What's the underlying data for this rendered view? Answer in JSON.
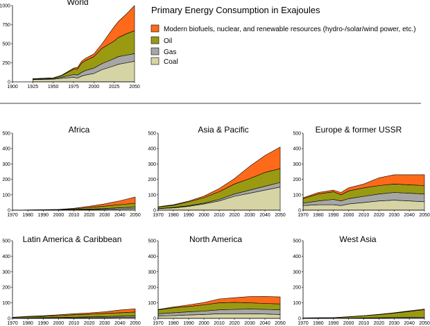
{
  "title": "Primary Energy Consumption in Exajoules",
  "colors": {
    "Coal": "#d6d3a5",
    "Gas": "#a6a6a6",
    "Oil": "#9a9a12",
    "Renewables": "#ff6a1a",
    "outline": "#000000"
  },
  "legend": [
    {
      "key": "Renewables",
      "label": "Modern biofuels, nuclear, and renewable resources (hydro-/solar/wind power, etc.)"
    },
    {
      "key": "Oil",
      "label": "Oil"
    },
    {
      "key": "Gas",
      "label": "Gas"
    },
    {
      "key": "Coal",
      "label": "Coal"
    }
  ],
  "chart_data": [
    {
      "type": "area",
      "title": "World",
      "stacked": true,
      "x": [
        1925,
        1950,
        1960,
        1975,
        1980,
        1985,
        1990,
        2000,
        2010,
        2025,
        2030,
        2040,
        2050
      ],
      "xticks": [
        1900,
        1925,
        1950,
        1975,
        2000,
        2025,
        2050
      ],
      "xtick_labels": [
        "1900",
        "1925",
        "1950",
        "1975",
        "2000",
        "2025",
        "2050"
      ],
      "xlim": [
        1900,
        2050
      ],
      "ylim": [
        0,
        1000
      ],
      "yticks": [
        0,
        250,
        500,
        750,
        1000
      ],
      "ytick_labels": [
        "0",
        "250",
        "500",
        "750",
        "1000"
      ],
      "series": [
        {
          "name": "Coal",
          "values": [
            30,
            35,
            45,
            60,
            50,
            75,
            90,
            110,
            160,
            210,
            230,
            250,
            270
          ]
        },
        {
          "name": "Gas",
          "values": [
            5,
            8,
            15,
            35,
            40,
            50,
            60,
            70,
            80,
            95,
            100,
            100,
            100
          ]
        },
        {
          "name": "Oil",
          "values": [
            5,
            10,
            20,
            70,
            80,
            120,
            130,
            150,
            200,
            230,
            250,
            280,
            300
          ]
        },
        {
          "name": "Renewables",
          "values": [
            0,
            0,
            5,
            15,
            20,
            25,
            30,
            35,
            60,
            190,
            210,
            260,
            330
          ]
        }
      ]
    },
    {
      "type": "area",
      "title": "Africa",
      "stacked": true,
      "x": [
        1970,
        2000,
        2010,
        2020,
        2030,
        2040,
        2050
      ],
      "xticks": [
        1970,
        1980,
        1990,
        2000,
        2010,
        2020,
        2030,
        2040,
        2050
      ],
      "xtick_labels": [
        "1970",
        "1980",
        "1990",
        "2000",
        "2010",
        "2020",
        "2030",
        "2040",
        "2050"
      ],
      "xlim": [
        1970,
        2050
      ],
      "ylim": [
        0,
        500
      ],
      "yticks": [
        0,
        100,
        200,
        300,
        400,
        500
      ],
      "ytick_labels": [
        "0",
        "100",
        "200",
        "300",
        "400",
        "500"
      ],
      "series": [
        {
          "name": "Coal",
          "values": [
            0,
            1,
            2,
            3,
            5,
            8,
            10
          ]
        },
        {
          "name": "Gas",
          "values": [
            0,
            1,
            2,
            4,
            6,
            8,
            10
          ]
        },
        {
          "name": "Oil",
          "values": [
            0,
            2,
            5,
            10,
            15,
            20,
            25
          ]
        },
        {
          "name": "Renewables",
          "values": [
            0,
            1,
            3,
            8,
            15,
            25,
            40
          ]
        }
      ]
    },
    {
      "type": "area",
      "title": "Asia & Pacific",
      "stacked": true,
      "x": [
        1970,
        1980,
        1990,
        2000,
        2010,
        2020,
        2030,
        2040,
        2050
      ],
      "xticks": [
        1970,
        1980,
        1990,
        2000,
        2010,
        2020,
        2030,
        2040,
        2050
      ],
      "xtick_labels": [
        "1970",
        "1980",
        "1990",
        "2000",
        "2010",
        "2020",
        "2030",
        "2040",
        "2050"
      ],
      "xlim": [
        1970,
        2050
      ],
      "ylim": [
        0,
        500
      ],
      "yticks": [
        0,
        100,
        200,
        300,
        400,
        500
      ],
      "ytick_labels": [
        "0",
        "100",
        "200",
        "300",
        "400",
        "500"
      ],
      "series": [
        {
          "name": "Coal",
          "values": [
            10,
            15,
            25,
            40,
            60,
            90,
            110,
            130,
            150
          ]
        },
        {
          "name": "Gas",
          "values": [
            1,
            2,
            4,
            6,
            10,
            15,
            20,
            25,
            30
          ]
        },
        {
          "name": "Oil",
          "values": [
            10,
            15,
            25,
            35,
            50,
            65,
            75,
            90,
            90
          ]
        },
        {
          "name": "Renewables",
          "values": [
            1,
            3,
            5,
            10,
            20,
            35,
            80,
            110,
            140
          ]
        }
      ]
    },
    {
      "type": "area",
      "title": "Europe & former USSR",
      "stacked": true,
      "x": [
        1970,
        1980,
        1990,
        1995,
        2000,
        2010,
        2020,
        2030,
        2040,
        2050
      ],
      "xticks": [
        1970,
        1980,
        1990,
        2000,
        2010,
        2020,
        2030,
        2040,
        2050
      ],
      "xtick_labels": [
        "1970",
        "1980",
        "1990",
        "2000",
        "2010",
        "2020",
        "2030",
        "2040",
        "2050"
      ],
      "xlim": [
        1970,
        2050
      ],
      "ylim": [
        0,
        500
      ],
      "yticks": [
        0,
        100,
        200,
        300,
        400,
        500
      ],
      "ytick_labels": [
        "0",
        "100",
        "200",
        "300",
        "400",
        "500"
      ],
      "series": [
        {
          "name": "Coal",
          "values": [
            30,
            35,
            35,
            30,
            40,
            50,
            60,
            65,
            60,
            55
          ]
        },
        {
          "name": "Gas",
          "values": [
            15,
            25,
            35,
            30,
            35,
            40,
            45,
            50,
            50,
            50
          ]
        },
        {
          "name": "Oil",
          "values": [
            30,
            45,
            50,
            40,
            50,
            55,
            55,
            55,
            55,
            55
          ]
        },
        {
          "name": "Renewables",
          "values": [
            5,
            10,
            10,
            15,
            20,
            25,
            50,
            60,
            65,
            70
          ]
        }
      ]
    },
    {
      "type": "area",
      "title": "Latin America & Caribbean",
      "stacked": true,
      "x": [
        1970,
        1980,
        1990,
        2000,
        2010,
        2020,
        2030,
        2040,
        2050
      ],
      "xticks": [
        1970,
        1980,
        1990,
        2000,
        2010,
        2020,
        2030,
        2040,
        2050
      ],
      "xtick_labels": [
        "1970",
        "1980",
        "1990",
        "2000",
        "2010",
        "2020",
        "2030",
        "2040",
        "2050"
      ],
      "xlim": [
        1970,
        2050
      ],
      "ylim": [
        0,
        500
      ],
      "yticks": [
        0,
        100,
        200,
        300,
        400,
        500
      ],
      "ytick_labels": [
        "0",
        "100",
        "200",
        "300",
        "400",
        "500"
      ],
      "series": [
        {
          "name": "Coal",
          "values": [
            0,
            1,
            1,
            2,
            3,
            4,
            5,
            6,
            7
          ]
        },
        {
          "name": "Gas",
          "values": [
            1,
            2,
            3,
            4,
            5,
            6,
            7,
            8,
            9
          ]
        },
        {
          "name": "Oil",
          "values": [
            5,
            8,
            10,
            12,
            15,
            17,
            20,
            22,
            25
          ]
        },
        {
          "name": "Renewables",
          "values": [
            1,
            2,
            3,
            5,
            7,
            8,
            10,
            18,
            20
          ]
        }
      ]
    },
    {
      "type": "area",
      "title": "North America",
      "stacked": true,
      "x": [
        1970,
        1980,
        1990,
        2000,
        2010,
        2020,
        2030,
        2040,
        2050
      ],
      "xticks": [
        1970,
        1980,
        1990,
        2000,
        2010,
        2020,
        2030,
        2040,
        2050
      ],
      "xtick_labels": [
        "1970",
        "1980",
        "1990",
        "2000",
        "2010",
        "2020",
        "2030",
        "2040",
        "2050"
      ],
      "xlim": [
        1970,
        2050
      ],
      "ylim": [
        0,
        500
      ],
      "yticks": [
        0,
        100,
        200,
        300,
        400,
        500
      ],
      "ytick_labels": [
        "0",
        "100",
        "200",
        "300",
        "400",
        "500"
      ],
      "series": [
        {
          "name": "Coal",
          "values": [
            15,
            18,
            22,
            25,
            30,
            30,
            30,
            28,
            25
          ]
        },
        {
          "name": "Gas",
          "values": [
            15,
            18,
            20,
            22,
            25,
            28,
            30,
            30,
            30
          ]
        },
        {
          "name": "Oil",
          "values": [
            25,
            32,
            35,
            40,
            45,
            45,
            40,
            38,
            38
          ]
        },
        {
          "name": "Renewables",
          "values": [
            2,
            5,
            10,
            15,
            25,
            30,
            40,
            45,
            45
          ]
        }
      ]
    },
    {
      "type": "area",
      "title": "West Asia",
      "stacked": true,
      "x": [
        1970,
        1990,
        2000,
        2010,
        2020,
        2030,
        2040,
        2050
      ],
      "xticks": [
        1970,
        1980,
        1990,
        2000,
        2010,
        2020,
        2030,
        2040,
        2050
      ],
      "xtick_labels": [
        "1970",
        "1980",
        "1990",
        "2000",
        "2010",
        "2020",
        "2030",
        "2040",
        "2050"
      ],
      "xlim": [
        1970,
        2050
      ],
      "ylim": [
        0,
        500
      ],
      "yticks": [
        0,
        100,
        200,
        300,
        400,
        500
      ],
      "ytick_labels": [
        "0",
        "100",
        "200",
        "300",
        "400",
        "500"
      ],
      "series": [
        {
          "name": "Coal",
          "values": [
            0,
            0,
            0,
            0,
            0,
            1,
            1,
            1
          ]
        },
        {
          "name": "Gas",
          "values": [
            1,
            1,
            2,
            3,
            4,
            5,
            6,
            7
          ]
        },
        {
          "name": "Oil",
          "values": [
            2,
            4,
            8,
            14,
            20,
            28,
            38,
            48
          ]
        },
        {
          "name": "Renewables",
          "values": [
            0,
            0,
            1,
            1,
            2,
            2,
            3,
            4
          ]
        }
      ]
    }
  ]
}
